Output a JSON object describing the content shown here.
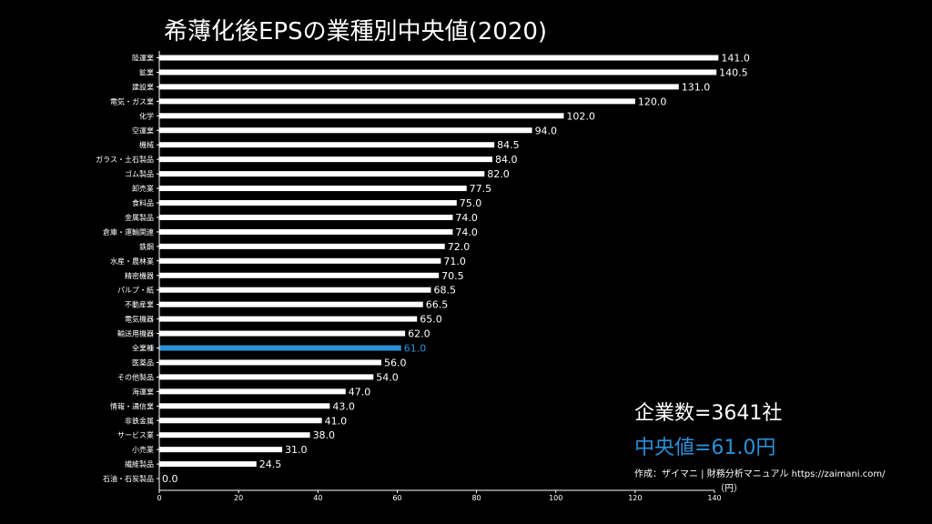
{
  "title": "希薄化後EPSの業種別中央値(2020)",
  "summary": {
    "company_count": "企業数=3641社",
    "median_label": "中央値=61.0円",
    "credit": "作成：ザイマニ | 財務分析マニュアル https://zaimani.com/",
    "unit": "（円）"
  },
  "colors": {
    "background": "#000000",
    "bar": "#ffffff",
    "highlight": "#2b90d9",
    "text": "#ffffff"
  },
  "chart_data": {
    "type": "bar",
    "orientation": "horizontal",
    "categories": [
      "陸運業",
      "鉱業",
      "建設業",
      "電気・ガス業",
      "化学",
      "空運業",
      "機械",
      "ガラス・土石製品",
      "ゴム製品",
      "卸売業",
      "食料品",
      "金属製品",
      "倉庫・運輸関連",
      "鉄鋼",
      "水産・農林業",
      "精密機器",
      "パルプ・紙",
      "不動産業",
      "電気機器",
      "輸送用機器",
      "全業種",
      "医薬品",
      "その他製品",
      "海運業",
      "情報・通信業",
      "非鉄金属",
      "サービス業",
      "小売業",
      "繊維製品",
      "石油・石炭製品"
    ],
    "values": [
      141.0,
      140.5,
      131.0,
      120.0,
      102.0,
      94.0,
      84.5,
      84.0,
      82.0,
      77.5,
      75.0,
      74.0,
      74.0,
      72.0,
      71.0,
      70.5,
      68.5,
      66.5,
      65.0,
      62.0,
      61.0,
      56.0,
      54.0,
      47.0,
      43.0,
      41.0,
      38.0,
      31.0,
      24.5,
      0.0
    ],
    "value_labels": [
      "141.0",
      "140.5",
      "131.0",
      "120.0",
      "102.0",
      "94.0",
      "84.5",
      "84.0",
      "82.0",
      "77.5",
      "75.0",
      "74.0",
      "74.0",
      "72.0",
      "71.0",
      "70.5",
      "68.5",
      "66.5",
      "65.0",
      "62.0",
      "61.0",
      "56.0",
      "54.0",
      "47.0",
      "43.0",
      "41.0",
      "38.0",
      "31.0",
      "24.5",
      "0.0"
    ],
    "highlight_category": "全業種",
    "xlim": [
      0,
      140
    ],
    "xticks": [
      0,
      20,
      40,
      60,
      80,
      100,
      120,
      140
    ],
    "grid": false
  }
}
